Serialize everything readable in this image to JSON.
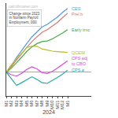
{
  "chart_data": {
    "type": "line",
    "categories": [
      "M1",
      "M2",
      "M3",
      "M4",
      "M5",
      "M6",
      "M7",
      "M8",
      "M9",
      "M10",
      "M11",
      "M12",
      "M1"
    ],
    "xlabel": "2024",
    "series": [
      {
        "name": "CES",
        "color": "#5599dd",
        "values": [
          0,
          50,
          110,
          165,
          215,
          265,
          305,
          340,
          360,
          385,
          415,
          450,
          480
        ]
      },
      {
        "name": "Prel b",
        "color": "#dd7777",
        "values": [
          0,
          40,
          90,
          140,
          185,
          230,
          265,
          300,
          320,
          345,
          375,
          410,
          445
        ]
      },
      {
        "name": "Early trnc",
        "color": "#44aa44",
        "values": [
          0,
          30,
          70,
          115,
          155,
          190,
          215,
          230,
          235,
          250,
          270,
          295,
          320
        ]
      },
      {
        "name": "QCEW",
        "color": "#bbbb22",
        "values": [
          0,
          55,
          100,
          145,
          185,
          195,
          195,
          175,
          165,
          158,
          155,
          150,
          148
        ]
      },
      {
        "name": "CPS adj\nto CBO",
        "color": "#dd44dd",
        "values": [
          0,
          -20,
          -30,
          -10,
          20,
          40,
          25,
          -5,
          -10,
          5,
          30,
          55,
          85
        ]
      },
      {
        "name": "CPS a",
        "color": "#22aaaa",
        "values": [
          0,
          -50,
          -100,
          -80,
          -55,
          -35,
          -55,
          -80,
          -85,
          -65,
          -40,
          -15,
          15
        ]
      }
    ],
    "ylim": [
      -180,
      520
    ],
    "yticks": [],
    "tick_labels": "x",
    "annotations": [
      {
        "text": "calculbrowser.com",
        "color": "#bbbbbb"
      },
      {
        "text": "Change since 2023\nin Nonfarm Payroll\nEmployment, 000"
      }
    ]
  }
}
